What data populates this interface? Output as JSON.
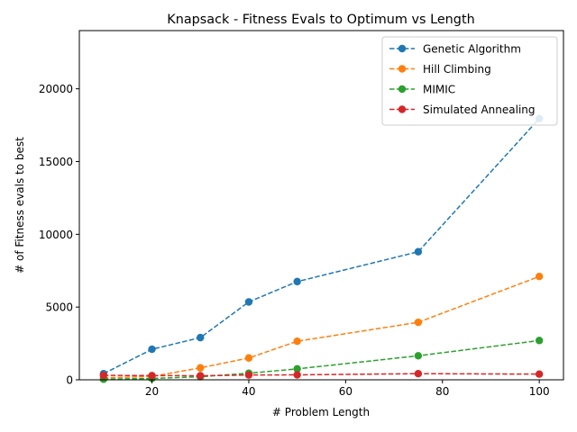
{
  "chart_data": {
    "type": "line",
    "title": "Knapsack - Fitness Evals to Optimum vs Length",
    "xlabel": "# Problem Length",
    "ylabel": "# of Fitness evals to best",
    "x": [
      10,
      20,
      30,
      40,
      50,
      75,
      100
    ],
    "xlim": [
      5,
      105
    ],
    "ylim": [
      0,
      24000
    ],
    "xticks": [
      20,
      40,
      60,
      80,
      100
    ],
    "yticks": [
      0,
      5000,
      10000,
      15000,
      20000
    ],
    "grid": false,
    "legend_position": "top-right",
    "series": [
      {
        "name": "Genetic Algorithm",
        "color": "#1f77b4",
        "values": [
          420,
          2100,
          2900,
          5350,
          6750,
          8800,
          17950
        ]
      },
      {
        "name": "Hill Climbing",
        "color": "#ff7f0e",
        "values": [
          130,
          230,
          820,
          1500,
          2650,
          3950,
          7100
        ]
      },
      {
        "name": "MIMIC",
        "color": "#2ca02c",
        "values": [
          40,
          90,
          210,
          450,
          750,
          1650,
          2700
        ]
      },
      {
        "name": "Simulated Annealing",
        "color": "#d62728",
        "values": [
          300,
          290,
          280,
          330,
          340,
          420,
          390
        ]
      }
    ]
  }
}
